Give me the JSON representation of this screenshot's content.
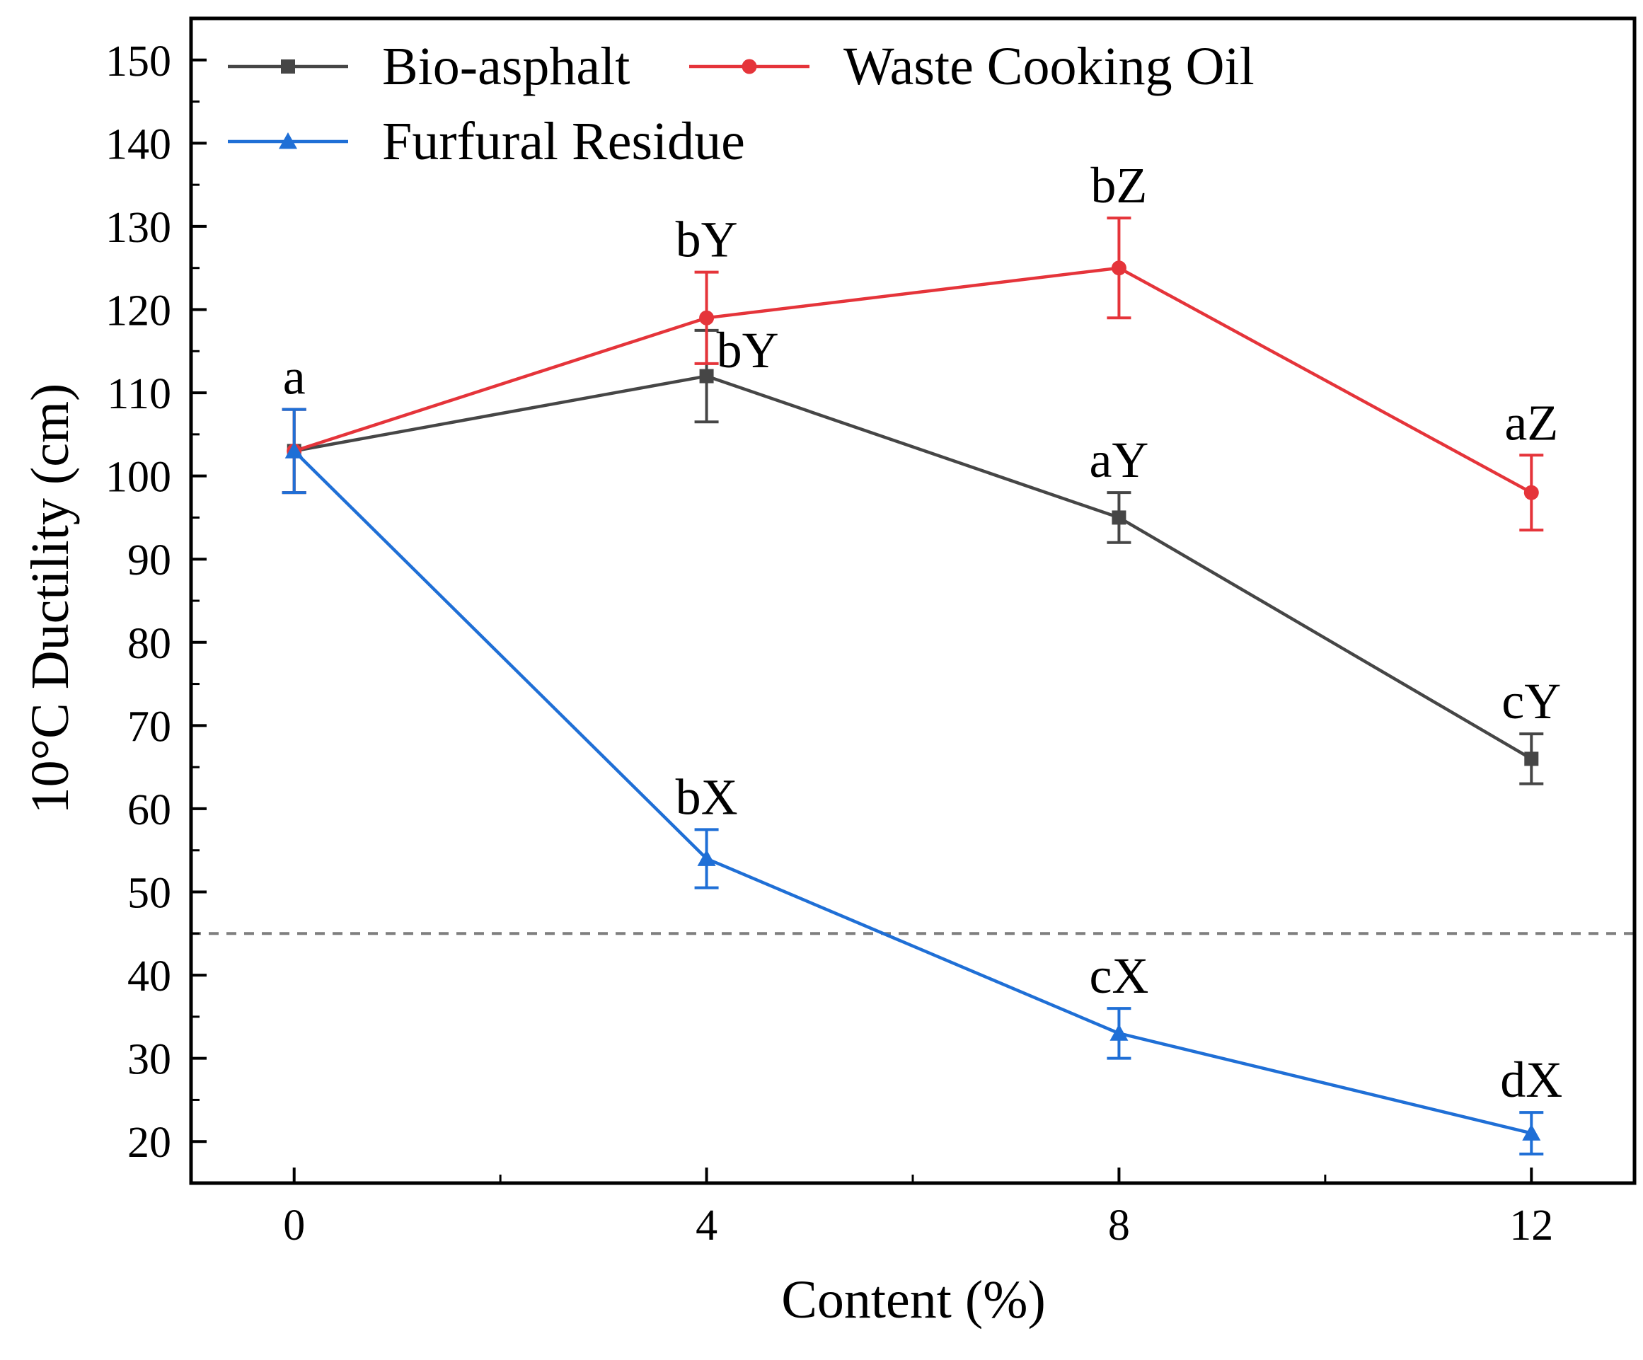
{
  "chart_data": {
    "type": "line",
    "title": "",
    "xlabel": "Content (%)",
    "ylabel": "10°C Ductility (cm)",
    "xlim": [
      -1,
      13
    ],
    "ylim": [
      15,
      155
    ],
    "x": [
      0,
      4,
      8,
      12
    ],
    "xticks": [
      0,
      4,
      8,
      12
    ],
    "xtick_labels": [
      "0",
      "4",
      "8",
      "12"
    ],
    "yticks": [
      20,
      30,
      40,
      50,
      60,
      70,
      80,
      90,
      100,
      110,
      120,
      130,
      140,
      150
    ],
    "ytick_labels": [
      "20",
      "30",
      "40",
      "50",
      "60",
      "70",
      "80",
      "90",
      "100",
      "110",
      "120",
      "130",
      "140",
      "150"
    ],
    "grid": false,
    "legend_position": "top-left",
    "reference_line": {
      "y": 45,
      "style": "dashed",
      "color": "#7f7f7f"
    },
    "series": [
      {
        "name": "Bio-asphalt",
        "color": "#464646",
        "marker": "square",
        "values": [
          103,
          112,
          95,
          66
        ],
        "errors": [
          5,
          5.5,
          3,
          3
        ],
        "labels": [
          "",
          "bY",
          "aY",
          "cY"
        ]
      },
      {
        "name": "Waste Cooking Oil",
        "color": "#e5343a",
        "marker": "circle",
        "values": [
          103,
          119,
          125,
          98
        ],
        "errors": [
          5,
          5.5,
          6,
          4.5
        ],
        "labels": [
          "",
          "bY",
          "bZ",
          "aZ"
        ]
      },
      {
        "name": "Furfural Residue",
        "color": "#1f6fd6",
        "marker": "triangle",
        "values": [
          103,
          54,
          33,
          21
        ],
        "errors": [
          5,
          3.5,
          3,
          2.5
        ],
        "labels": [
          "a",
          "bX",
          "cX",
          "dX"
        ]
      }
    ]
  }
}
